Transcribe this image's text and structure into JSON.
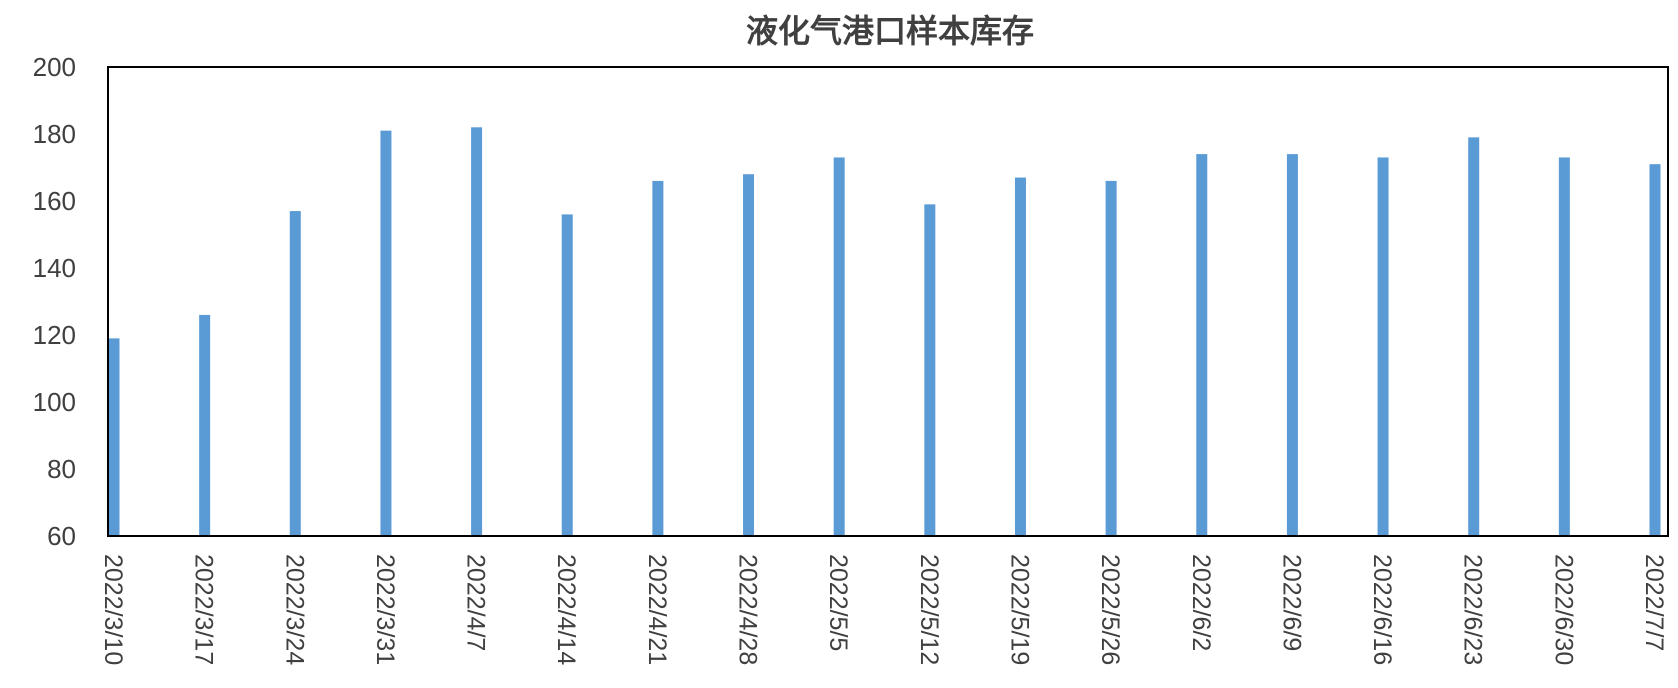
{
  "chart_data": {
    "type": "bar",
    "title": "液化气港口样本库存",
    "xlabel": "",
    "ylabel": "",
    "ylim": [
      60,
      200
    ],
    "yticks": [
      "60",
      "80",
      "100",
      "120",
      "140",
      "160",
      "180",
      "200"
    ],
    "grid": false,
    "legend": "none",
    "color": "#5b9bd5",
    "categories": [
      "2022/3/10",
      "2022/3/17",
      "2022/3/24",
      "2022/3/31",
      "2022/4/7",
      "2022/4/14",
      "2022/4/21",
      "2022/4/28",
      "2022/5/5",
      "2022/5/12",
      "2022/5/19",
      "2022/5/26",
      "2022/6/2",
      "2022/6/9",
      "2022/6/16",
      "2022/6/23",
      "2022/6/30",
      "2022/7/7"
    ],
    "values": [
      119,
      126,
      157,
      181,
      182,
      156,
      166,
      168,
      173,
      159,
      167,
      166,
      174,
      174,
      173,
      179,
      173,
      171
    ]
  }
}
